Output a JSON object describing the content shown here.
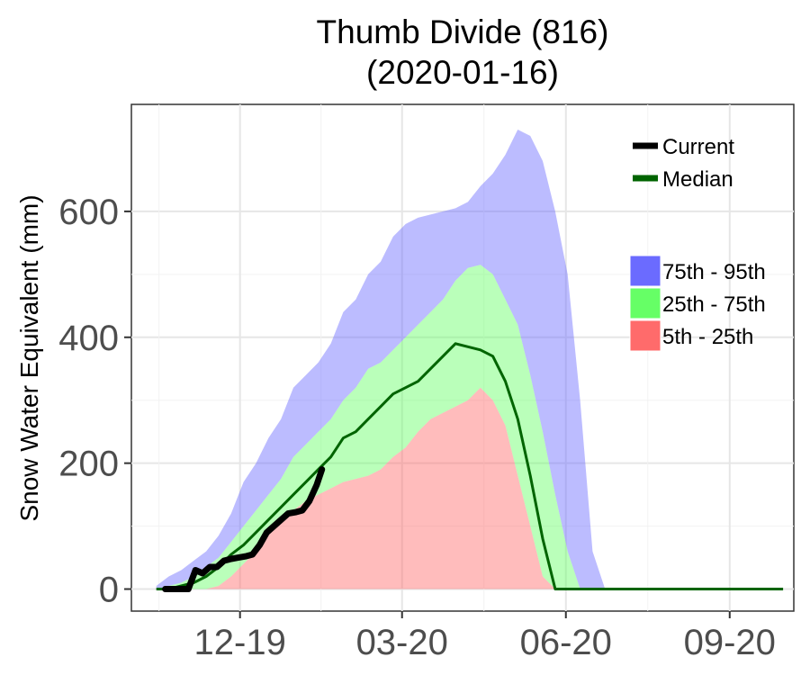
{
  "chart_data": {
    "type": "area",
    "title": "Thumb Divide (816)",
    "subtitle": "(2020-01-16)",
    "ylabel": "Snow Water Equivalent (mm)",
    "xlabel": "",
    "x_unit": "date",
    "xlim": [
      "2019-10-01",
      "2020-10-07"
    ],
    "ylim": [
      -35,
      770
    ],
    "yticks": [
      0,
      200,
      400,
      600
    ],
    "ytick_labels": [
      "0",
      "200",
      "400",
      "600"
    ],
    "xticks": [
      "2019-12-01",
      "2020-03-01",
      "2020-06-01",
      "2020-09-01"
    ],
    "xtick_labels": [
      "12-19",
      "03-20",
      "06-20",
      "09-20"
    ],
    "grid": true,
    "legend_position": "top-right",
    "colors": {
      "current": "#000000",
      "median": "#006400",
      "p75_95": "#6b6bff",
      "p25_75": "#66ff66",
      "p5_25": "#ff6b6b"
    },
    "legend": {
      "lines": [
        {
          "key": "current",
          "label": "Current"
        },
        {
          "key": "median",
          "label": "Median"
        }
      ],
      "bands": [
        {
          "key": "p75_95",
          "label": "75th - 95th"
        },
        {
          "key": "p25_75",
          "label": "25th - 75th"
        },
        {
          "key": "p5_25",
          "label": "5th - 25th"
        }
      ]
    },
    "x": [
      "2019-10-15",
      "2019-10-22",
      "2019-10-29",
      "2019-11-05",
      "2019-11-12",
      "2019-11-19",
      "2019-11-26",
      "2019-12-03",
      "2019-12-10",
      "2019-12-17",
      "2019-12-24",
      "2019-12-31",
      "2020-01-07",
      "2020-01-14",
      "2020-01-21",
      "2020-01-28",
      "2020-02-04",
      "2020-02-11",
      "2020-02-18",
      "2020-02-25",
      "2020-03-03",
      "2020-03-10",
      "2020-03-17",
      "2020-03-24",
      "2020-03-31",
      "2020-04-07",
      "2020-04-14",
      "2020-04-21",
      "2020-04-28",
      "2020-05-05",
      "2020-05-12",
      "2020-05-19",
      "2020-05-26",
      "2020-06-02",
      "2020-06-09",
      "2020-06-16",
      "2020-06-23",
      "2020-06-30",
      "2020-07-07"
    ],
    "series": [
      {
        "key": "p95",
        "values": [
          5,
          20,
          30,
          45,
          60,
          85,
          120,
          170,
          200,
          240,
          270,
          320,
          340,
          360,
          390,
          440,
          460,
          500,
          520,
          560,
          580,
          590,
          595,
          600,
          605,
          615,
          640,
          660,
          690,
          730,
          720,
          680,
          600,
          500,
          300,
          60,
          0,
          0,
          0
        ]
      },
      {
        "key": "p75",
        "values": [
          0,
          5,
          10,
          20,
          35,
          50,
          75,
          100,
          125,
          150,
          175,
          210,
          230,
          250,
          270,
          300,
          320,
          350,
          360,
          380,
          400,
          420,
          440,
          460,
          490,
          510,
          515,
          500,
          460,
          420,
          340,
          250,
          150,
          60,
          0,
          0,
          0,
          0,
          0
        ]
      },
      {
        "key": "median",
        "values": [
          0,
          0,
          5,
          10,
          20,
          35,
          55,
          70,
          90,
          110,
          130,
          150,
          170,
          190,
          210,
          240,
          250,
          270,
          290,
          310,
          320,
          330,
          350,
          370,
          390,
          385,
          380,
          370,
          330,
          270,
          180,
          80,
          0,
          0,
          0,
          0,
          0,
          0,
          0
        ]
      },
      {
        "key": "p25",
        "values": [
          0,
          0,
          0,
          0,
          0,
          5,
          20,
          40,
          60,
          90,
          110,
          125,
          140,
          150,
          160,
          170,
          175,
          180,
          190,
          210,
          225,
          250,
          270,
          280,
          290,
          300,
          320,
          300,
          260,
          180,
          100,
          20,
          0,
          0,
          0,
          0,
          0,
          0,
          0
        ]
      },
      {
        "key": "p5",
        "values": [
          0,
          0,
          0,
          0,
          0,
          0,
          0,
          0,
          0,
          0,
          0,
          0,
          0,
          0,
          0,
          0,
          0,
          0,
          0,
          0,
          0,
          0,
          0,
          0,
          0,
          0,
          0,
          0,
          0,
          0,
          0,
          0,
          0,
          0,
          0,
          0,
          0,
          0,
          0
        ]
      },
      {
        "key": "current",
        "name": "Current",
        "x": [
          "2019-10-20",
          "2019-10-25",
          "2019-10-29",
          "2019-11-02",
          "2019-11-06",
          "2019-11-10",
          "2019-11-14",
          "2019-11-18",
          "2019-11-22",
          "2019-11-26",
          "2019-11-30",
          "2019-12-04",
          "2019-12-08",
          "2019-12-12",
          "2019-12-16",
          "2019-12-20",
          "2019-12-24",
          "2019-12-28",
          "2020-01-01",
          "2020-01-05",
          "2020-01-09",
          "2020-01-13",
          "2020-01-16"
        ],
        "values": [
          0,
          0,
          0,
          0,
          30,
          25,
          35,
          35,
          45,
          48,
          50,
          52,
          55,
          70,
          90,
          100,
          110,
          120,
          122,
          125,
          140,
          165,
          190
        ]
      },
      {
        "key": "median_tail",
        "x": [
          "2020-06-02",
          "2020-10-01"
        ],
        "values": [
          0,
          0
        ]
      }
    ]
  }
}
